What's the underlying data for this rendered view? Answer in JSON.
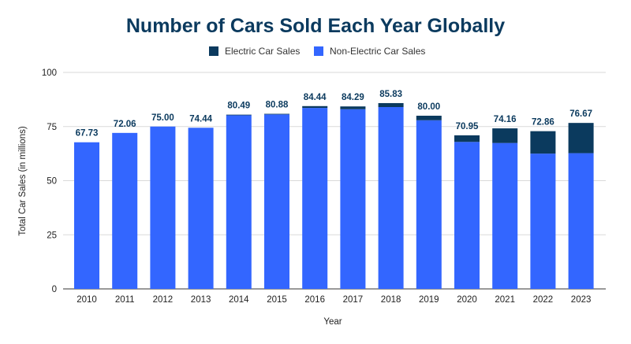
{
  "chart_data": {
    "type": "bar",
    "stacked": true,
    "title": "Number of Cars Sold Each Year Globally",
    "xlabel": "Year",
    "ylabel": "Total Car Sales (in millions)",
    "ylim": [
      0,
      100
    ],
    "yticks": [
      0,
      25,
      50,
      75,
      100
    ],
    "grid": true,
    "legend_position": "top",
    "categories": [
      "2010",
      "2011",
      "2012",
      "2013",
      "2014",
      "2015",
      "2016",
      "2017",
      "2018",
      "2019",
      "2020",
      "2021",
      "2022",
      "2023"
    ],
    "series": [
      {
        "name": "Non-Electric Car Sales",
        "color": "#3366ff",
        "values": [
          67.73,
          72.06,
          75.0,
          74.44,
          80.2,
          80.6,
          83.6,
          83.0,
          84.0,
          77.9,
          67.9,
          67.4,
          62.5,
          62.7
        ]
      },
      {
        "name": "Electric Car Sales",
        "color": "#0b3a5e",
        "values": [
          0.0,
          0.0,
          0.0,
          0.0,
          0.29,
          0.28,
          0.84,
          1.29,
          1.83,
          2.1,
          3.05,
          6.76,
          10.36,
          13.97
        ]
      }
    ],
    "totals": [
      "67.73",
      "72.06",
      "75.00",
      "74.44",
      "80.49",
      "80.88",
      "84.44",
      "84.29",
      "85.83",
      "80.00",
      "70.95",
      "74.16",
      "72.86",
      "76.67"
    ]
  }
}
